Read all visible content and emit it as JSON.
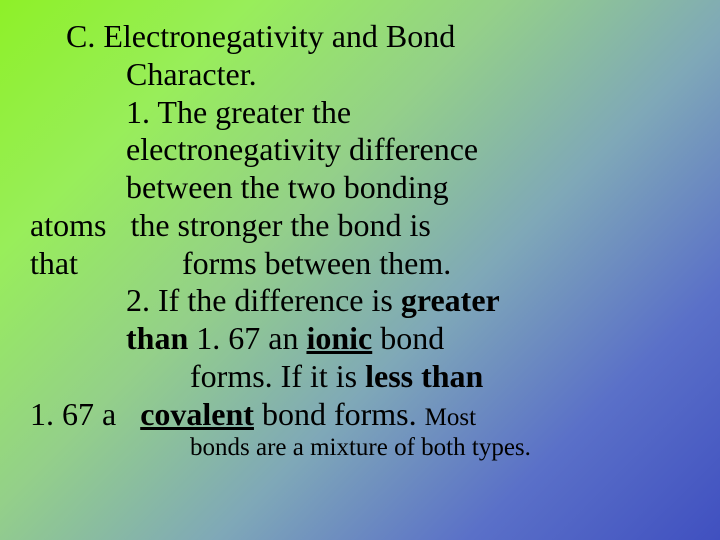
{
  "slide": {
    "heading_line1": "C. Electronegativity and Bond",
    "heading_line2": "Character.",
    "p1_line1": "1. The greater the",
    "p1_line2": "electronegativity difference",
    "p1_line3": "between the two bonding",
    "p1_line4a": "atoms",
    "p1_line4b": "the stronger the bond is",
    "p1_line5a": "that",
    "p1_line5b": "forms between them.",
    "p2_line1a": "2. If the difference is ",
    "p2_line1b": "greater",
    "p2_line2a": "than",
    "p2_line2b": " 1. 67 an ",
    "p2_line2c": "ionic",
    "p2_line2d": " bond",
    "p2_line3a": "forms. If it is ",
    "p2_line3b": "less than",
    "p2_line4a": "1. 67 a",
    "p2_line4b": "covalent",
    "p2_line4c": " bond forms. ",
    "p2_note1": "Most",
    "p2_note2": "bonds are a mixture of both types."
  },
  "style": {
    "background_gradient": "linear-gradient(135deg, #8ef028, #98ee5a, #94d089, #7fa8b8, #5a70c8, #4050c0)",
    "font_family": "Times New Roman",
    "text_color": "#000000",
    "base_fontsize": 32,
    "small_fontsize": 25
  }
}
